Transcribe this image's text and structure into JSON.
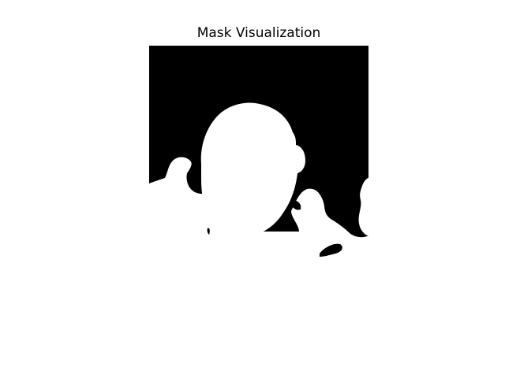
{
  "figure": {
    "title": "Mask Visualization",
    "background_color": "#ffffff"
  },
  "mask": {
    "foreground_color": "#ffffff",
    "background_color": "#000000"
  }
}
